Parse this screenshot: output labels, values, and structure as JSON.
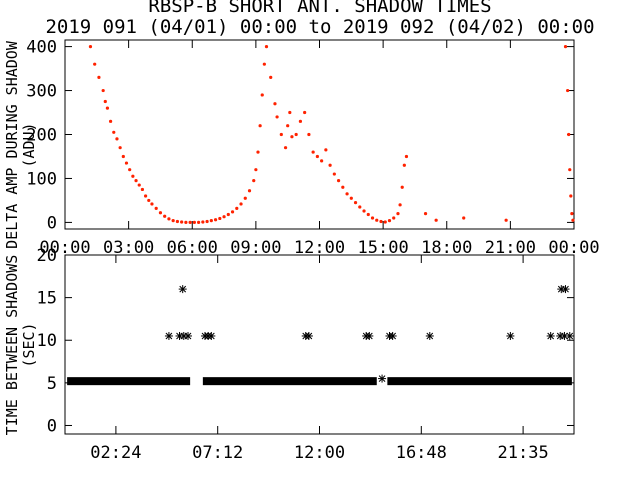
{
  "title": "RBSP-B SHORT ANT. SHADOW TIMES",
  "subtitle": "2019 091 (04/01) 00:00 to 2019 092 (04/02) 00:00",
  "colors": {
    "points": "#ff2200",
    "stars": "#000000",
    "axes": "#000000"
  },
  "chart_data": [
    {
      "type": "scatter",
      "ylabel_line1": "DELTA AMP DURING SHADOW",
      "ylabel_line2": "(ADU)",
      "x_unit": "hours",
      "xlim": [
        0,
        24
      ],
      "ylim": [
        -15,
        415
      ],
      "x_ticks": [
        0,
        3,
        6,
        9,
        12,
        15,
        18,
        21,
        24
      ],
      "x_tick_labels": [
        "00:00",
        "03:00",
        "06:00",
        "09:00",
        "12:00",
        "15:00",
        "18:00",
        "21:00",
        "00:00"
      ],
      "y_ticks": [
        0,
        100,
        200,
        300,
        400
      ],
      "y_tick_labels": [
        "0",
        "100",
        "200",
        "300",
        "400"
      ],
      "grid": false,
      "series": [
        {
          "points": [
            [
              1.2,
              400
            ],
            [
              1.4,
              360
            ],
            [
              1.6,
              330
            ],
            [
              1.8,
              300
            ],
            [
              1.9,
              275
            ],
            [
              2.0,
              260
            ],
            [
              2.15,
              230
            ],
            [
              2.3,
              205
            ],
            [
              2.45,
              190
            ],
            [
              2.6,
              170
            ],
            [
              2.75,
              150
            ],
            [
              2.9,
              135
            ],
            [
              3.05,
              120
            ],
            [
              3.2,
              105
            ],
            [
              3.35,
              95
            ],
            [
              3.5,
              85
            ],
            [
              3.65,
              75
            ],
            [
              3.8,
              60
            ],
            [
              3.95,
              50
            ],
            [
              4.1,
              42
            ],
            [
              4.3,
              32
            ],
            [
              4.5,
              22
            ],
            [
              4.7,
              14
            ],
            [
              4.9,
              8
            ],
            [
              5.1,
              4
            ],
            [
              5.3,
              2
            ],
            [
              5.5,
              1
            ],
            [
              5.7,
              0
            ],
            [
              5.9,
              0
            ],
            [
              6.1,
              0
            ],
            [
              6.3,
              0
            ],
            [
              6.5,
              1
            ],
            [
              6.7,
              2
            ],
            [
              6.9,
              4
            ],
            [
              7.1,
              6
            ],
            [
              7.3,
              9
            ],
            [
              7.5,
              13
            ],
            [
              7.7,
              18
            ],
            [
              7.9,
              24
            ],
            [
              8.1,
              32
            ],
            [
              8.3,
              42
            ],
            [
              8.5,
              55
            ],
            [
              8.7,
              72
            ],
            [
              8.9,
              95
            ],
            [
              9.0,
              120
            ],
            [
              9.1,
              160
            ],
            [
              9.2,
              220
            ],
            [
              9.3,
              290
            ],
            [
              9.4,
              360
            ],
            [
              9.5,
              400
            ],
            [
              9.7,
              330
            ],
            [
              9.9,
              270
            ],
            [
              10.0,
              240
            ],
            [
              10.2,
              200
            ],
            [
              10.4,
              170
            ],
            [
              10.5,
              220
            ],
            [
              10.6,
              250
            ],
            [
              10.7,
              195
            ],
            [
              10.9,
              200
            ],
            [
              11.1,
              230
            ],
            [
              11.3,
              250
            ],
            [
              11.5,
              200
            ],
            [
              11.7,
              160
            ],
            [
              11.9,
              150
            ],
            [
              12.1,
              140
            ],
            [
              12.3,
              165
            ],
            [
              12.5,
              130
            ],
            [
              12.7,
              110
            ],
            [
              12.9,
              95
            ],
            [
              13.1,
              80
            ],
            [
              13.3,
              65
            ],
            [
              13.5,
              55
            ],
            [
              13.7,
              45
            ],
            [
              13.9,
              35
            ],
            [
              14.1,
              26
            ],
            [
              14.3,
              18
            ],
            [
              14.5,
              10
            ],
            [
              14.7,
              5
            ],
            [
              14.9,
              2
            ],
            [
              15.1,
              1
            ],
            [
              15.3,
              4
            ],
            [
              15.5,
              10
            ],
            [
              15.7,
              20
            ],
            [
              15.8,
              40
            ],
            [
              15.9,
              80
            ],
            [
              16.0,
              130
            ],
            [
              16.1,
              150
            ],
            [
              17.0,
              20
            ],
            [
              17.5,
              5
            ],
            [
              18.8,
              10
            ],
            [
              20.8,
              5
            ],
            [
              23.6,
              400
            ],
            [
              23.7,
              300
            ],
            [
              23.75,
              200
            ],
            [
              23.8,
              120
            ],
            [
              23.85,
              60
            ],
            [
              23.9,
              20
            ],
            [
              23.95,
              5
            ]
          ]
        }
      ]
    },
    {
      "type": "scatter",
      "ylabel_line1": "TIME BETWEEN SHADOWS",
      "ylabel_line2": "(SEC)",
      "x_unit": "hours",
      "xlim": [
        0,
        24
      ],
      "ylim": [
        -1,
        20
      ],
      "x_ticks": [
        2.4,
        7.2,
        12.0,
        16.8,
        21.6
      ],
      "x_tick_labels": [
        "02:24",
        "07:12",
        "12:00",
        "16:48",
        "21:35"
      ],
      "y_ticks": [
        0,
        5,
        10,
        15,
        20
      ],
      "y_tick_labels": [
        "0",
        "5",
        "10",
        "15",
        "20"
      ],
      "grid": false,
      "series": [
        {
          "points": [
            [
              4.9,
              10.5
            ],
            [
              5.4,
              10.5
            ],
            [
              5.6,
              10.5
            ],
            [
              5.8,
              10.5
            ],
            [
              5.55,
              16
            ],
            [
              6.6,
              10.5
            ],
            [
              6.75,
              10.5
            ],
            [
              6.9,
              10.5
            ],
            [
              11.35,
              10.5
            ],
            [
              11.5,
              10.5
            ],
            [
              14.2,
              10.5
            ],
            [
              14.35,
              10.5
            ],
            [
              15.3,
              10.5
            ],
            [
              15.45,
              10.5
            ],
            [
              17.2,
              10.5
            ],
            [
              21.0,
              10.5
            ],
            [
              22.9,
              10.5
            ],
            [
              23.35,
              10.5
            ],
            [
              23.55,
              10.5
            ],
            [
              23.8,
              10.5
            ],
            [
              23.4,
              16
            ],
            [
              23.6,
              16
            ],
            [
              14.95,
              5.5
            ]
          ],
          "dense_ranges": [
            {
              "y": 5.2,
              "from": 0.1,
              "to": 5.9
            },
            {
              "y": 5.2,
              "from": 6.5,
              "to": 14.7
            },
            {
              "y": 5.2,
              "from": 15.2,
              "to": 23.9
            }
          ]
        }
      ]
    }
  ]
}
